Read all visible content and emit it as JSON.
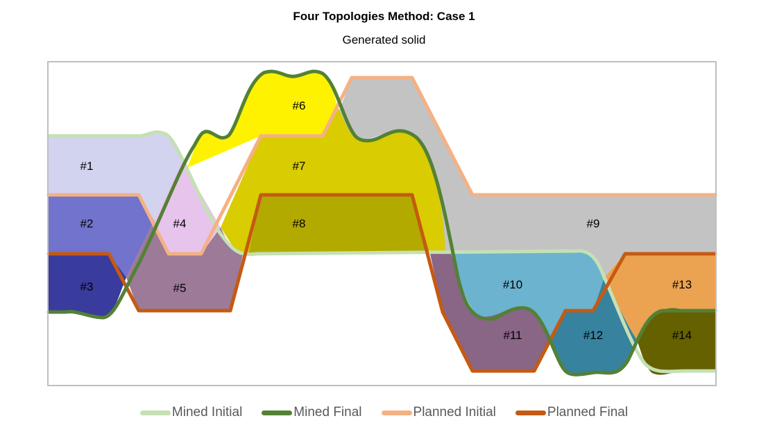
{
  "title": "Four Topologies Method: Case 1",
  "subtitle": "Generated solid",
  "regions": [
    {
      "id": "r1",
      "label": "#1",
      "color": "#d2d3ee"
    },
    {
      "id": "r2",
      "label": "#2",
      "color": "#7173cc"
    },
    {
      "id": "r3",
      "label": "#3",
      "color": "#393b9d"
    },
    {
      "id": "r4",
      "label": "#4",
      "color": "#e6c4ec"
    },
    {
      "id": "r5",
      "label": "#5",
      "color": "#9c7a98"
    },
    {
      "id": "r6",
      "label": "#6",
      "color": "#fff200"
    },
    {
      "id": "r7",
      "label": "#7",
      "color": "#d9cc00"
    },
    {
      "id": "r8",
      "label": "#8",
      "color": "#b3aa00"
    },
    {
      "id": "r9",
      "label": "#9",
      "color": "#c3c3c3"
    },
    {
      "id": "r10",
      "label": "#10",
      "color": "#6cb3cf"
    },
    {
      "id": "r11",
      "label": "#11",
      "color": "#896586"
    },
    {
      "id": "r12",
      "label": "#12",
      "color": "#37829f"
    },
    {
      "id": "r13",
      "label": "#13",
      "color": "#eba251"
    },
    {
      "id": "r14",
      "label": "#14",
      "color": "#666100"
    }
  ],
  "legend": [
    {
      "id": "mined-initial",
      "label": "Mined Initial",
      "color": "#c5e0b4"
    },
    {
      "id": "mined-final",
      "label": "Mined Final",
      "color": "#538135"
    },
    {
      "id": "planned-initial",
      "label": "Planned Initial",
      "color": "#f4b183"
    },
    {
      "id": "planned-final",
      "label": "Planned Final",
      "color": "#c55a11"
    }
  ],
  "frame_color": "#bfbfbf"
}
